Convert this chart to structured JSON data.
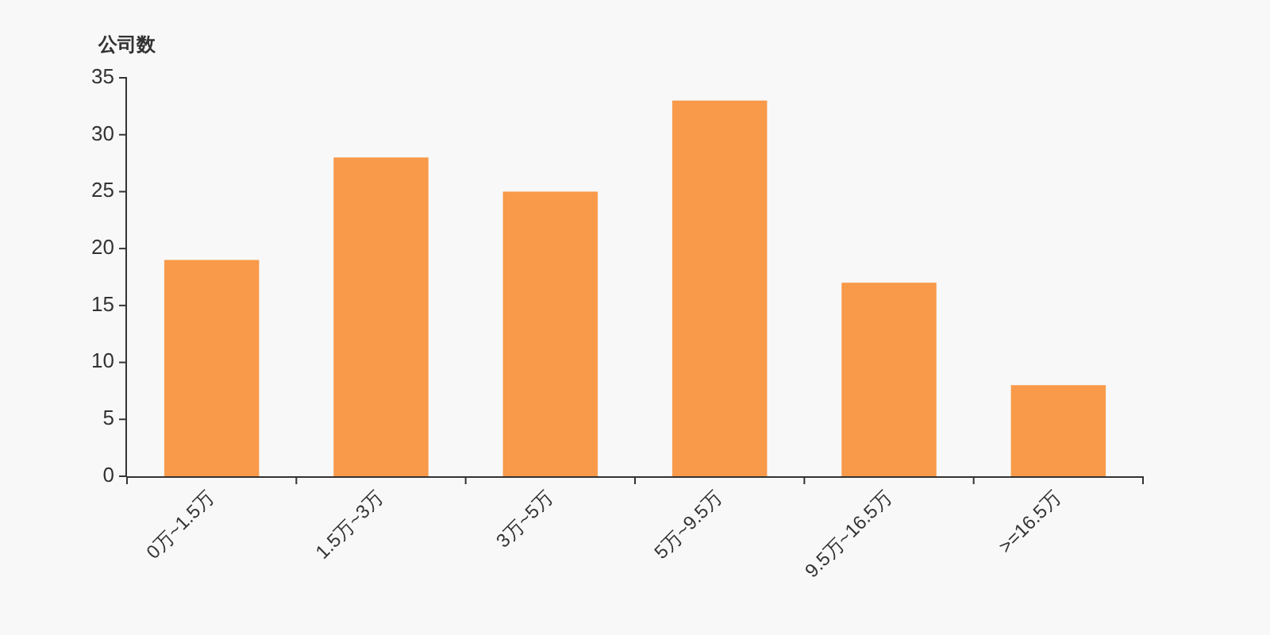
{
  "chart_data": {
    "type": "bar",
    "ylabel": "公司数",
    "categories": [
      "0万~1.5万",
      "1.5万~3万",
      "3万~5万",
      "5万~9.5万",
      "9.5万~16.5万",
      ">=16.5万"
    ],
    "values": [
      19,
      28,
      25,
      33,
      17,
      8
    ],
    "color": "#f89a4a",
    "ylim": [
      0,
      35
    ],
    "yticks": [
      0,
      5,
      10,
      15,
      20,
      25,
      30,
      35
    ]
  }
}
